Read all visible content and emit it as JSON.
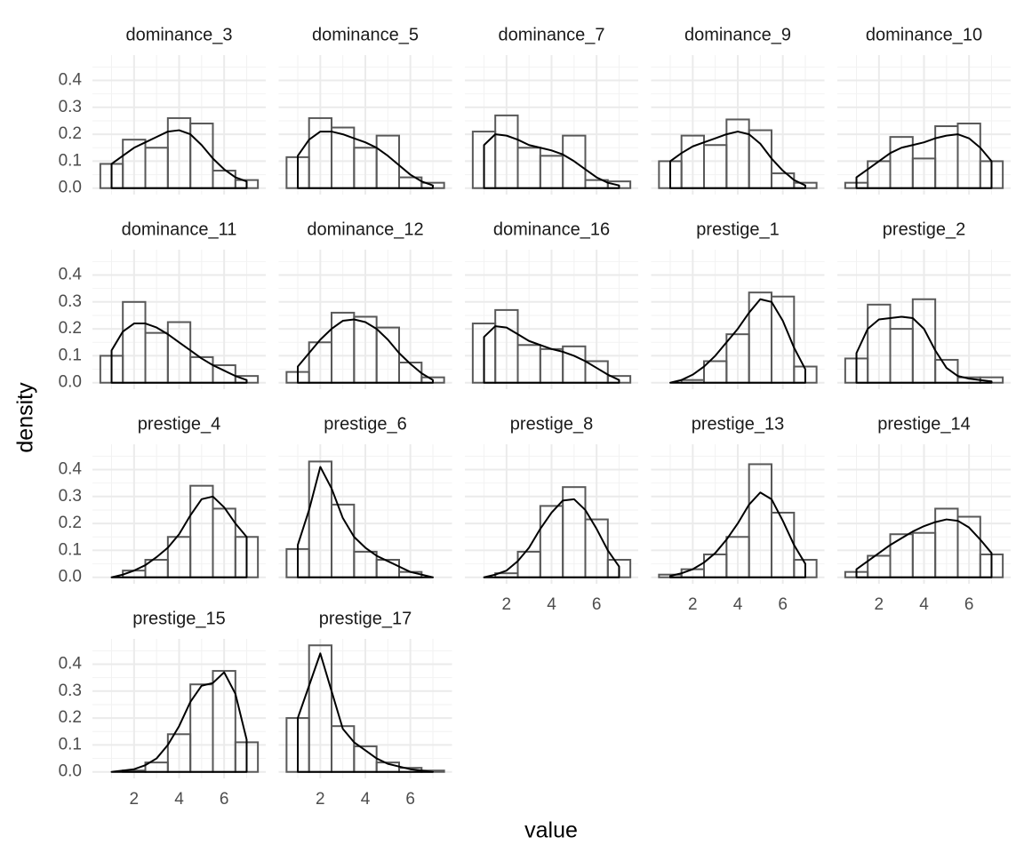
{
  "chart_data": {
    "type": "histogram",
    "x_label": "value",
    "y_label": "density",
    "xlim": [
      0.15,
      7.85
    ],
    "ylim": [
      -0.024,
      0.494
    ],
    "xticks": [
      2,
      4,
      6
    ],
    "yticks": [
      {
        "value": 0,
        "label": "0.0"
      },
      0.1,
      0.2,
      0.3,
      0.4
    ],
    "grid": true,
    "bar_color": "#595959",
    "line_color": "#000000",
    "bins": [
      0.5,
      1.5,
      2.5,
      3.5,
      4.5,
      5.5,
      6.5,
      7.5
    ],
    "density_x": [
      1,
      1.5,
      2,
      2.5,
      3,
      3.5,
      4,
      4.5,
      5,
      5.5,
      6,
      6.5,
      7
    ],
    "panels": [
      {
        "title": "dominance_3",
        "values": [
          0.09,
          0.18,
          0.15,
          0.26,
          0.24,
          0.065,
          0.03
        ],
        "density": [
          0.09,
          0.12,
          0.15,
          0.17,
          0.19,
          0.21,
          0.215,
          0.2,
          0.16,
          0.11,
          0.07,
          0.04,
          0.025
        ]
      },
      {
        "title": "dominance_5",
        "values": [
          0.115,
          0.26,
          0.225,
          0.15,
          0.195,
          0.04,
          0.02
        ],
        "density": [
          0.12,
          0.18,
          0.21,
          0.21,
          0.2,
          0.185,
          0.17,
          0.15,
          0.12,
          0.085,
          0.05,
          0.025,
          0.01
        ]
      },
      {
        "title": "dominance_7",
        "values": [
          0.21,
          0.27,
          0.15,
          0.12,
          0.195,
          0.03,
          0.025
        ],
        "density": [
          0.16,
          0.2,
          0.195,
          0.18,
          0.16,
          0.15,
          0.14,
          0.125,
          0.1,
          0.07,
          0.04,
          0.02,
          0.01
        ]
      },
      {
        "title": "dominance_9",
        "values": [
          0.1,
          0.195,
          0.16,
          0.255,
          0.215,
          0.055,
          0.02
        ],
        "density": [
          0.1,
          0.13,
          0.155,
          0.17,
          0.185,
          0.2,
          0.21,
          0.2,
          0.165,
          0.11,
          0.065,
          0.03,
          0.01
        ]
      },
      {
        "title": "dominance_10",
        "values": [
          0.02,
          0.1,
          0.19,
          0.11,
          0.23,
          0.24,
          0.1
        ],
        "density": [
          0.04,
          0.07,
          0.1,
          0.13,
          0.15,
          0.16,
          0.17,
          0.185,
          0.195,
          0.2,
          0.185,
          0.15,
          0.1
        ]
      },
      {
        "title": "dominance_11",
        "values": [
          0.1,
          0.3,
          0.185,
          0.225,
          0.095,
          0.065,
          0.025
        ],
        "density": [
          0.12,
          0.19,
          0.22,
          0.22,
          0.205,
          0.18,
          0.15,
          0.12,
          0.09,
          0.065,
          0.045,
          0.025,
          0.01
        ]
      },
      {
        "title": "dominance_12",
        "values": [
          0.04,
          0.15,
          0.26,
          0.245,
          0.205,
          0.075,
          0.02
        ],
        "density": [
          0.06,
          0.11,
          0.16,
          0.2,
          0.23,
          0.235,
          0.225,
          0.2,
          0.16,
          0.11,
          0.07,
          0.035,
          0.01
        ]
      },
      {
        "title": "dominance_16",
        "values": [
          0.22,
          0.27,
          0.14,
          0.125,
          0.135,
          0.08,
          0.025
        ],
        "density": [
          0.17,
          0.21,
          0.205,
          0.18,
          0.155,
          0.14,
          0.125,
          0.115,
          0.1,
          0.08,
          0.055,
          0.03,
          0.01
        ]
      },
      {
        "title": "prestige_1",
        "values": [
          0.0,
          0.01,
          0.08,
          0.18,
          0.335,
          0.32,
          0.06
        ],
        "density": [
          0.0,
          0.01,
          0.03,
          0.06,
          0.1,
          0.15,
          0.2,
          0.26,
          0.31,
          0.3,
          0.23,
          0.13,
          0.05
        ]
      },
      {
        "title": "prestige_2",
        "values": [
          0.09,
          0.29,
          0.2,
          0.31,
          0.085,
          0.02,
          0.02
        ],
        "density": [
          0.11,
          0.2,
          0.235,
          0.24,
          0.245,
          0.24,
          0.2,
          0.12,
          0.055,
          0.025,
          0.015,
          0.01,
          0.005
        ]
      },
      {
        "title": "prestige_4",
        "values": [
          0.0,
          0.025,
          0.065,
          0.15,
          0.34,
          0.255,
          0.15
        ],
        "density": [
          0.0,
          0.01,
          0.025,
          0.045,
          0.075,
          0.11,
          0.16,
          0.23,
          0.29,
          0.3,
          0.26,
          0.2,
          0.15
        ]
      },
      {
        "title": "prestige_6",
        "values": [
          0.105,
          0.43,
          0.27,
          0.095,
          0.065,
          0.02,
          0.0
        ],
        "density": [
          0.12,
          0.25,
          0.41,
          0.33,
          0.22,
          0.15,
          0.11,
          0.08,
          0.06,
          0.04,
          0.02,
          0.01,
          0.0
        ]
      },
      {
        "title": "prestige_8",
        "values": [
          0.0,
          0.015,
          0.095,
          0.265,
          0.335,
          0.215,
          0.065
        ],
        "density": [
          0.0,
          0.01,
          0.025,
          0.06,
          0.11,
          0.18,
          0.24,
          0.285,
          0.29,
          0.25,
          0.18,
          0.1,
          0.04
        ]
      },
      {
        "title": "prestige_13",
        "values": [
          0.01,
          0.03,
          0.085,
          0.15,
          0.42,
          0.24,
          0.065
        ],
        "density": [
          0.005,
          0.015,
          0.03,
          0.055,
          0.09,
          0.14,
          0.2,
          0.27,
          0.315,
          0.29,
          0.21,
          0.12,
          0.05
        ]
      },
      {
        "title": "prestige_14",
        "values": [
          0.02,
          0.08,
          0.16,
          0.165,
          0.255,
          0.225,
          0.085
        ],
        "density": [
          0.03,
          0.06,
          0.09,
          0.12,
          0.145,
          0.17,
          0.19,
          0.205,
          0.215,
          0.21,
          0.185,
          0.14,
          0.09
        ]
      },
      {
        "title": "prestige_15",
        "values": [
          0.0,
          0.005,
          0.035,
          0.14,
          0.325,
          0.375,
          0.11
        ],
        "density": [
          0.0,
          0.005,
          0.01,
          0.025,
          0.05,
          0.1,
          0.17,
          0.26,
          0.32,
          0.33,
          0.37,
          0.29,
          0.12
        ]
      },
      {
        "title": "prestige_17",
        "values": [
          0.2,
          0.47,
          0.17,
          0.095,
          0.035,
          0.015,
          0.005
        ],
        "density": [
          0.2,
          0.32,
          0.44,
          0.3,
          0.16,
          0.11,
          0.08,
          0.05,
          0.03,
          0.02,
          0.01,
          0.005,
          0.0
        ]
      }
    ]
  }
}
